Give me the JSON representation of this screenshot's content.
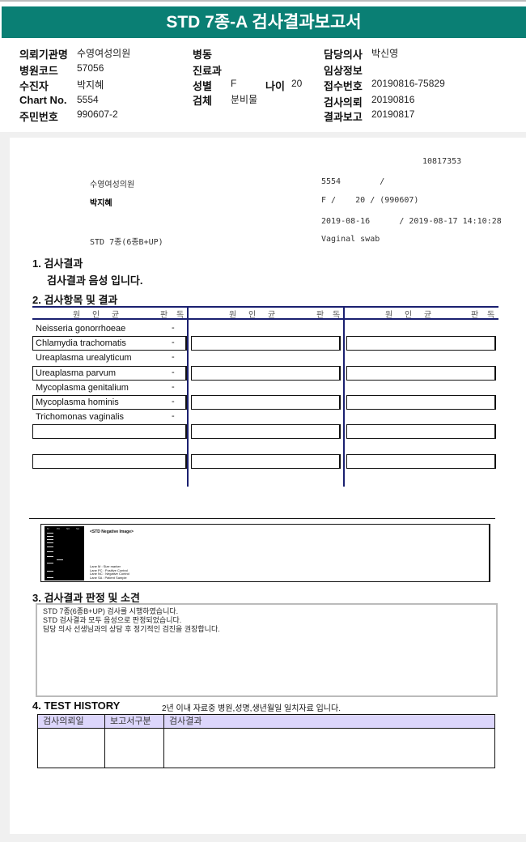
{
  "title": "STD 7종-A 검사결과보고서",
  "header": {
    "col1": [
      {
        "label": "의뢰기관명",
        "value": "수영여성의원"
      },
      {
        "label": "병원코드",
        "value": "57056"
      },
      {
        "label": "수진자",
        "value": "박지혜"
      },
      {
        "label": "Chart No.",
        "value": "5554"
      },
      {
        "label": "주민번호",
        "value": "990607-2"
      }
    ],
    "col2": [
      {
        "label": "병동",
        "value": ""
      },
      {
        "label": "진료과",
        "value": ""
      },
      {
        "label": "성별",
        "value": "F"
      },
      {
        "label": "검체",
        "value": "분비물"
      }
    ],
    "age": {
      "label": "나이",
      "value": "20"
    },
    "col3": [
      {
        "label": "담당의사",
        "value": "박신영"
      },
      {
        "label": "임상정보",
        "value": ""
      },
      {
        "label": "접수번호",
        "value": "20190816-75829"
      },
      {
        "label": "검사의뢰",
        "value": "20190816"
      },
      {
        "label": "결과보고",
        "value": "20190817"
      }
    ]
  },
  "report": {
    "id": "10817353",
    "hospital": "수영여성의원",
    "chart": "5554        /",
    "name": "박지혜",
    "sex_age": "F /    20 / (990607)",
    "dates": "2019-08-16      / 2019-08-17 14:10:28",
    "test": "STD 7종(6종B+UP)",
    "specimen": "Vaginal swab"
  },
  "section1": {
    "title": "1. 검사결과",
    "result": "검사결과 음성 입니다."
  },
  "section2": {
    "title": "2. 검사항목 및 결과",
    "col_header": "원 인 균",
    "read_header": "판 독",
    "items": [
      {
        "name": "Neisseria gonorrhoeae",
        "result": "-"
      },
      {
        "name": "Chlamydia trachomatis",
        "result": "-"
      },
      {
        "name": "Ureaplasma urealyticum",
        "result": "-"
      },
      {
        "name": "Ureaplasma parvum",
        "result": "-"
      },
      {
        "name": "Mycoplasma genitalium",
        "result": "-"
      },
      {
        "name": "Mycoplasma hominis",
        "result": "-"
      },
      {
        "name": "Trichomonas vaginalis",
        "result": "-"
      }
    ]
  },
  "gel": {
    "title": "<STD Negative Image>",
    "lanes": [
      "M",
      "PC",
      "NC",
      "SA"
    ],
    "legend": [
      "Lane M : Size marker",
      "Lane PC : Positive Control",
      "Lane NC : Negative Control",
      "Lane SA : Patient Sample"
    ]
  },
  "section3": {
    "title": "3. 검사결과 판정 및 소견",
    "lines": [
      "STD 7종(6종B+UP) 검사를 시행하였습니다.",
      "STD 검사결과 모두 음성으로 판정되었습니다.",
      "담당 의사 선생님과의 상담 후 정기적인 검진을 권장합니다."
    ]
  },
  "section4": {
    "title": "4. TEST HISTORY",
    "note": "2년 이내 자료중 병원,성명,생년월일 일치자료 입니다.",
    "columns": [
      "검사의뢰일",
      "보고서구분",
      "검사결과"
    ]
  },
  "colors": {
    "banner": "#0a7f74",
    "table_line": "#1a2070",
    "history_header": "#dcd6fb"
  }
}
